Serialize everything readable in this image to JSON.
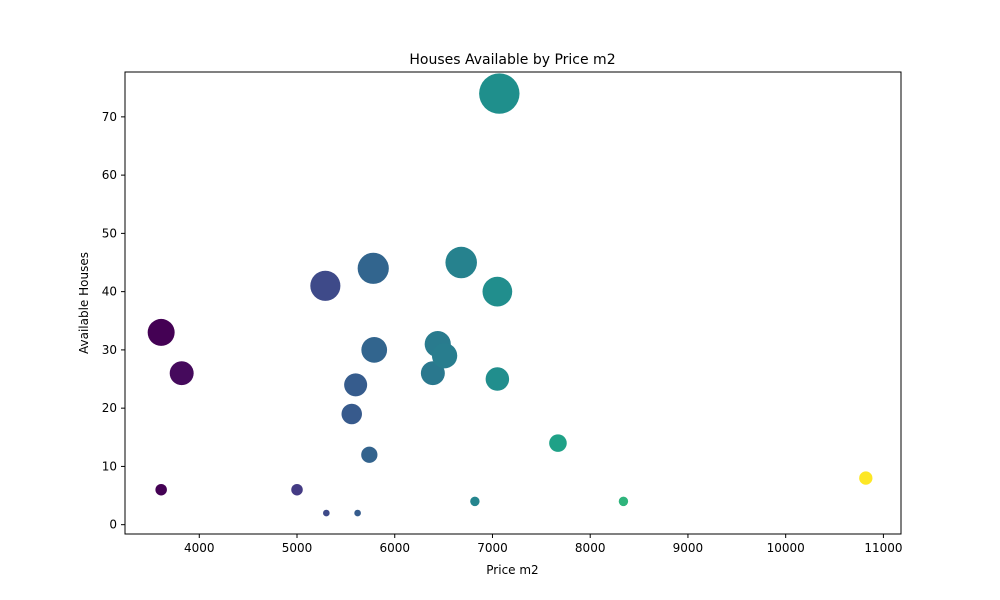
{
  "chart_data": {
    "type": "scatter",
    "title": "Houses Available by Price m2",
    "xlabel": "Price m2",
    "ylabel": "Available Houses",
    "xlim": [
      3240,
      11180
    ],
    "ylim": [
      -1.6,
      77.7
    ],
    "xticks": [
      4000,
      5000,
      6000,
      7000,
      8000,
      9000,
      10000,
      11000
    ],
    "yticks": [
      0,
      10,
      20,
      30,
      40,
      50,
      60,
      70
    ],
    "grid": false,
    "colormap": "viridis",
    "points": [
      {
        "x": 3610,
        "y": 6,
        "color": "#440154"
      },
      {
        "x": 3610,
        "y": 33,
        "color": "#440154"
      },
      {
        "x": 3820,
        "y": 26,
        "color": "#450a5c"
      },
      {
        "x": 5000,
        "y": 6,
        "color": "#443b84"
      },
      {
        "x": 5290,
        "y": 41,
        "color": "#3e4a89"
      },
      {
        "x": 5300,
        "y": 2,
        "color": "#3e4a89"
      },
      {
        "x": 5560,
        "y": 19,
        "color": "#375a8c"
      },
      {
        "x": 5600,
        "y": 24,
        "color": "#365c8d"
      },
      {
        "x": 5620,
        "y": 2,
        "color": "#365c8d"
      },
      {
        "x": 5740,
        "y": 12,
        "color": "#33638d"
      },
      {
        "x": 5780,
        "y": 44,
        "color": "#32658e"
      },
      {
        "x": 5790,
        "y": 30,
        "color": "#32658e"
      },
      {
        "x": 6390,
        "y": 26,
        "color": "#2a788e"
      },
      {
        "x": 6440,
        "y": 31,
        "color": "#297b8e"
      },
      {
        "x": 6510,
        "y": 29,
        "color": "#287d8e"
      },
      {
        "x": 6680,
        "y": 45,
        "color": "#26828e"
      },
      {
        "x": 6820,
        "y": 4,
        "color": "#25858e"
      },
      {
        "x": 7050,
        "y": 40,
        "color": "#218e8d"
      },
      {
        "x": 7050,
        "y": 25,
        "color": "#218e8d"
      },
      {
        "x": 7070,
        "y": 74,
        "color": "#1f8f8c"
      },
      {
        "x": 7670,
        "y": 14,
        "color": "#1fa187"
      },
      {
        "x": 8340,
        "y": 4,
        "color": "#2fb47c"
      },
      {
        "x": 10820,
        "y": 8,
        "color": "#fde725"
      }
    ]
  }
}
